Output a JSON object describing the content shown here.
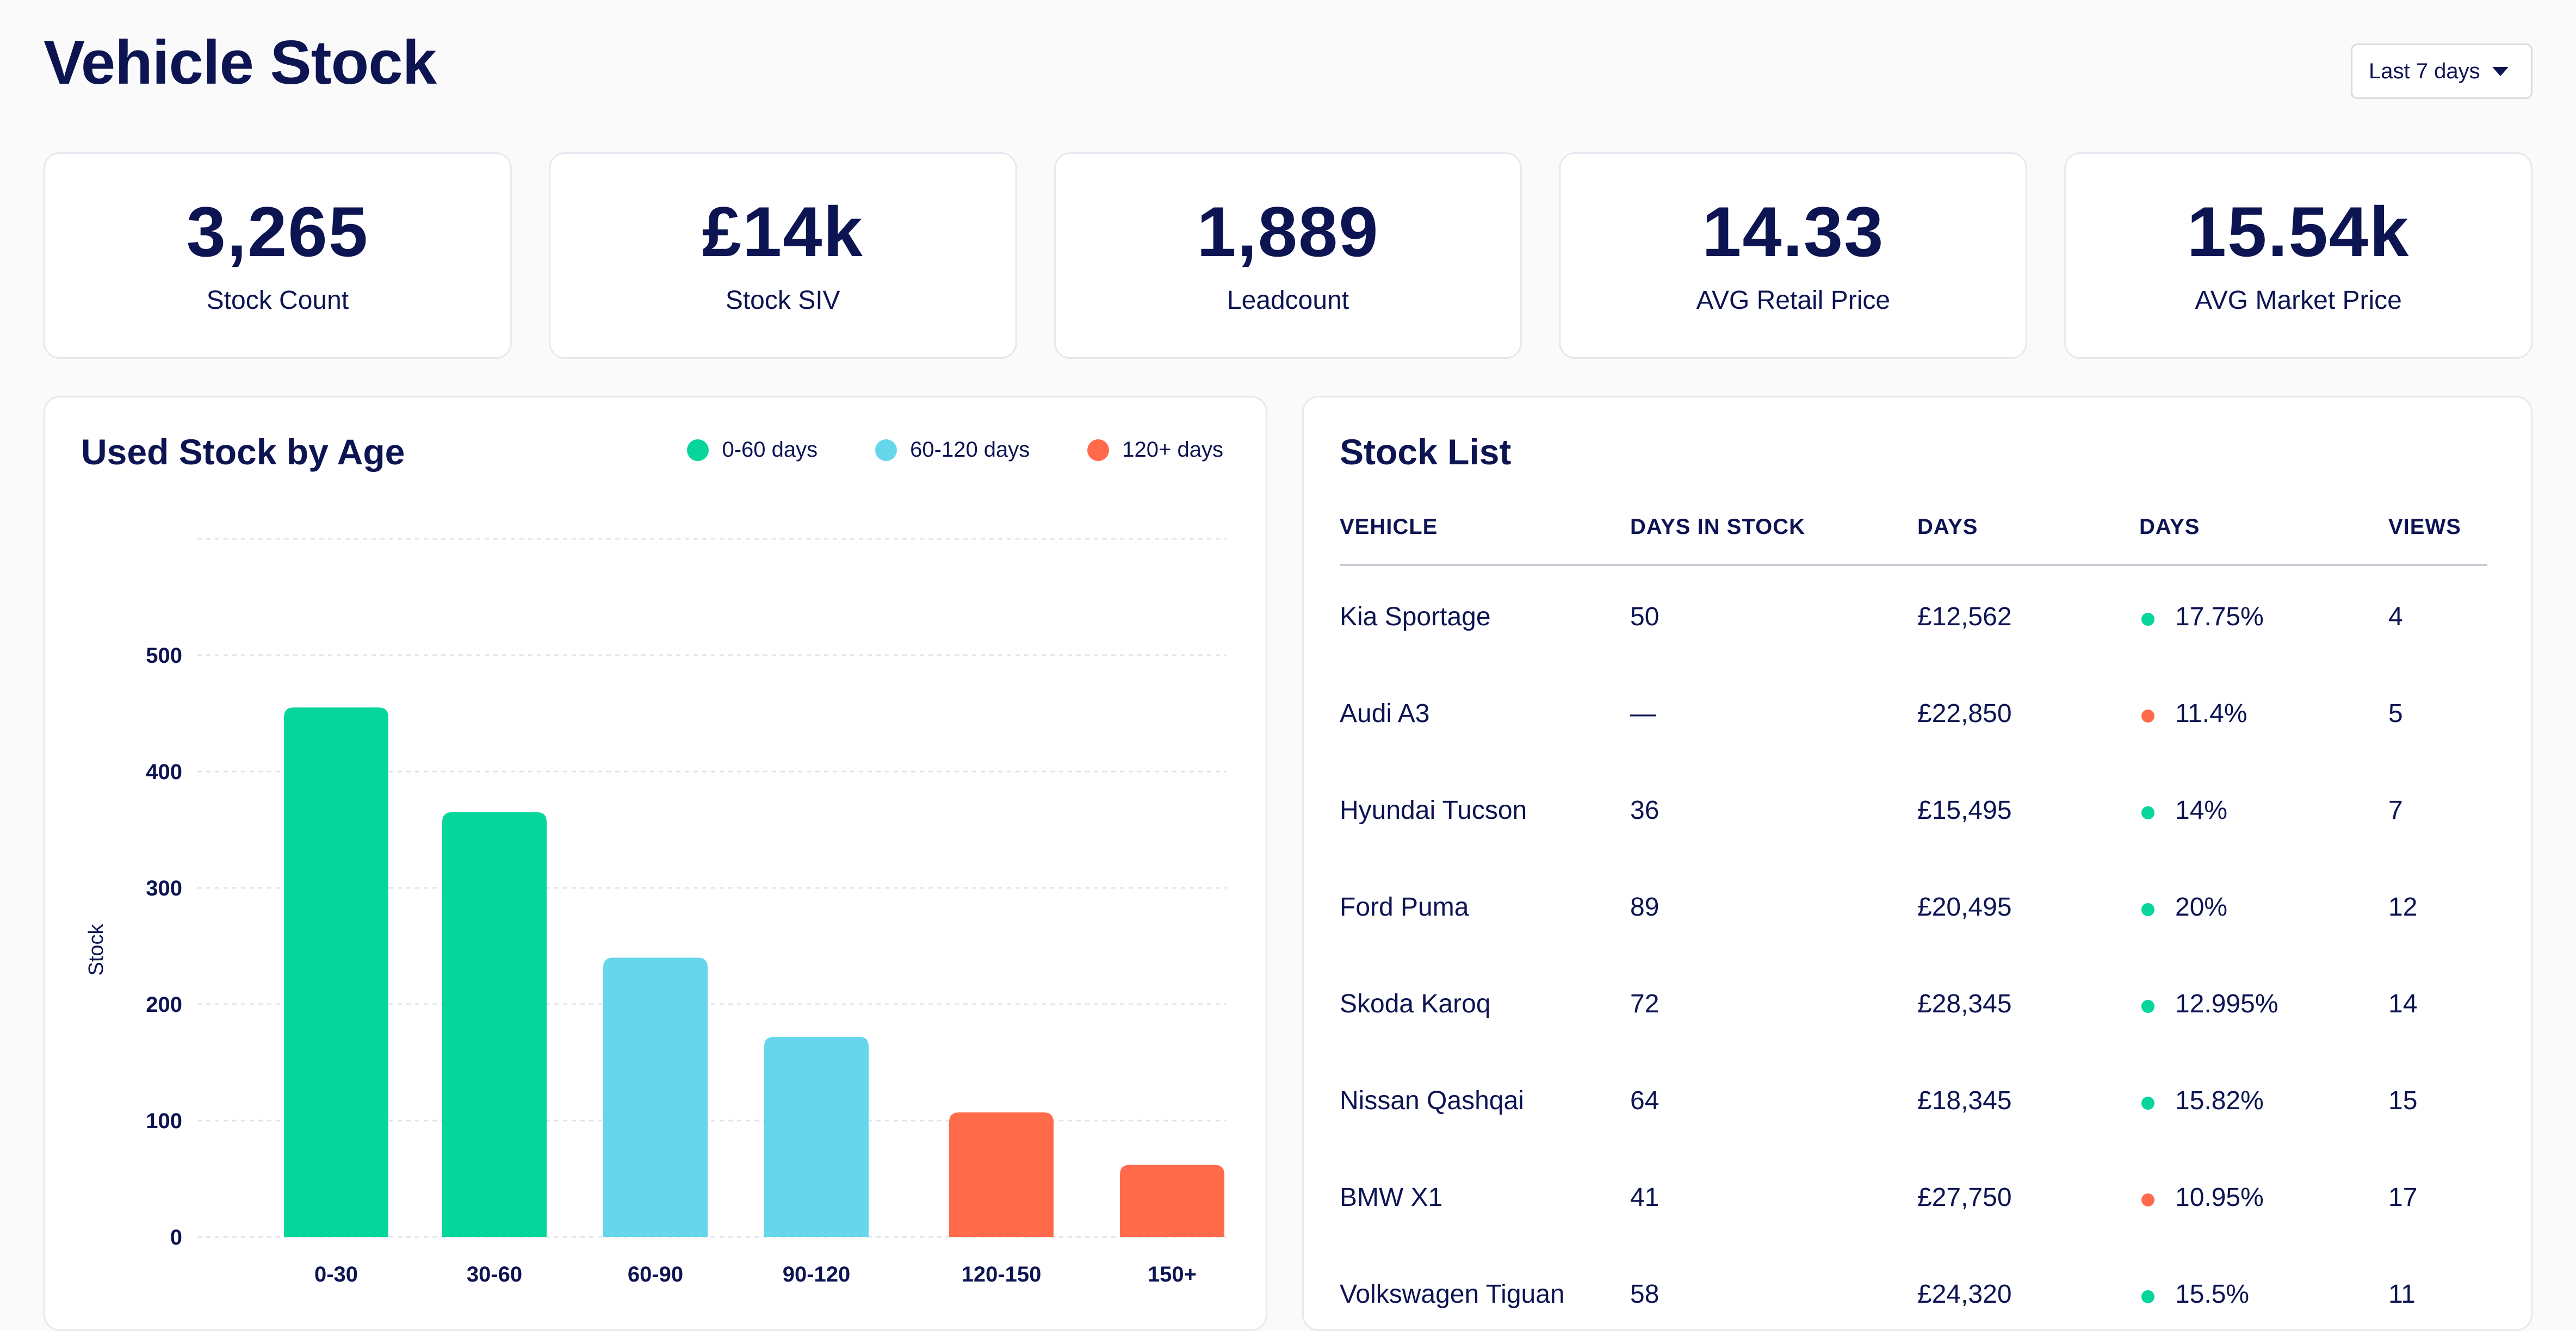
{
  "header": {
    "title": "Vehicle Stock",
    "range_label": "Last 7 days"
  },
  "kpis": [
    {
      "value": "3,265",
      "label": "Stock Count"
    },
    {
      "value": "£14k",
      "label": "Stock SIV"
    },
    {
      "value": "1,889",
      "label": "Leadcount"
    },
    {
      "value": "14.33",
      "label": "AVG Retail Price"
    },
    {
      "value": "15.54k",
      "label": "AVG Market Price"
    }
  ],
  "chart_panel": {
    "title": "Used Stock by Age",
    "legend": [
      {
        "label": "0-60 days",
        "color": "#06d69c"
      },
      {
        "label": "60-120 days",
        "color": "#66d6eb"
      },
      {
        "label": "120+ days",
        "color": "#ff6b4a"
      }
    ]
  },
  "chart_data": {
    "type": "bar",
    "categories": [
      "0-30",
      "30-60",
      "60-90",
      "90-120",
      "120-150",
      "150+"
    ],
    "values": [
      455,
      365,
      240,
      172,
      107,
      62
    ],
    "colors": [
      "#06d69c",
      "#06d69c",
      "#66d6eb",
      "#66d6eb",
      "#ff6b4a",
      "#ff6b4a"
    ],
    "ylabel": "Stock",
    "ylim": [
      0,
      600
    ],
    "yticks": [
      0,
      100,
      200,
      300,
      400,
      500
    ],
    "grid": true,
    "legend_position": "top-right"
  },
  "stock_list": {
    "title": "Stock List",
    "columns": [
      "VEHICLE",
      "DAYS IN STOCK",
      "DAYS",
      "DAYS",
      "VIEWS"
    ],
    "rows": [
      {
        "vehicle": "Kia Sportage",
        "days_in_stock": "50",
        "price": "£12,562",
        "pct": "17.75%",
        "status": "good",
        "views": "4"
      },
      {
        "vehicle": "Audi A3",
        "days_in_stock": "—",
        "price": "£22,850",
        "pct": "11.4%",
        "status": "bad",
        "views": "5"
      },
      {
        "vehicle": "Hyundai Tucson",
        "days_in_stock": "36",
        "price": "£15,495",
        "pct": "14%",
        "status": "good",
        "views": "7"
      },
      {
        "vehicle": "Ford Puma",
        "days_in_stock": "89",
        "price": "£20,495",
        "pct": "20%",
        "status": "good",
        "views": "12"
      },
      {
        "vehicle": "Skoda Karoq",
        "days_in_stock": "72",
        "price": "£28,345",
        "pct": "12.995%",
        "status": "good",
        "views": "14"
      },
      {
        "vehicle": "Nissan Qashqai",
        "days_in_stock": "64",
        "price": "£18,345",
        "pct": "15.82%",
        "status": "good",
        "views": "15"
      },
      {
        "vehicle": "BMW X1",
        "days_in_stock": "41",
        "price": "£27,750",
        "pct": "10.95%",
        "status": "bad",
        "views": "17"
      },
      {
        "vehicle": "Volkswagen Tiguan",
        "days_in_stock": "58",
        "price": "£24,320",
        "pct": "15.5%",
        "status": "good",
        "views": "11"
      }
    ],
    "status_colors": {
      "good": "#06d69c",
      "bad": "#ff6b4a"
    }
  }
}
